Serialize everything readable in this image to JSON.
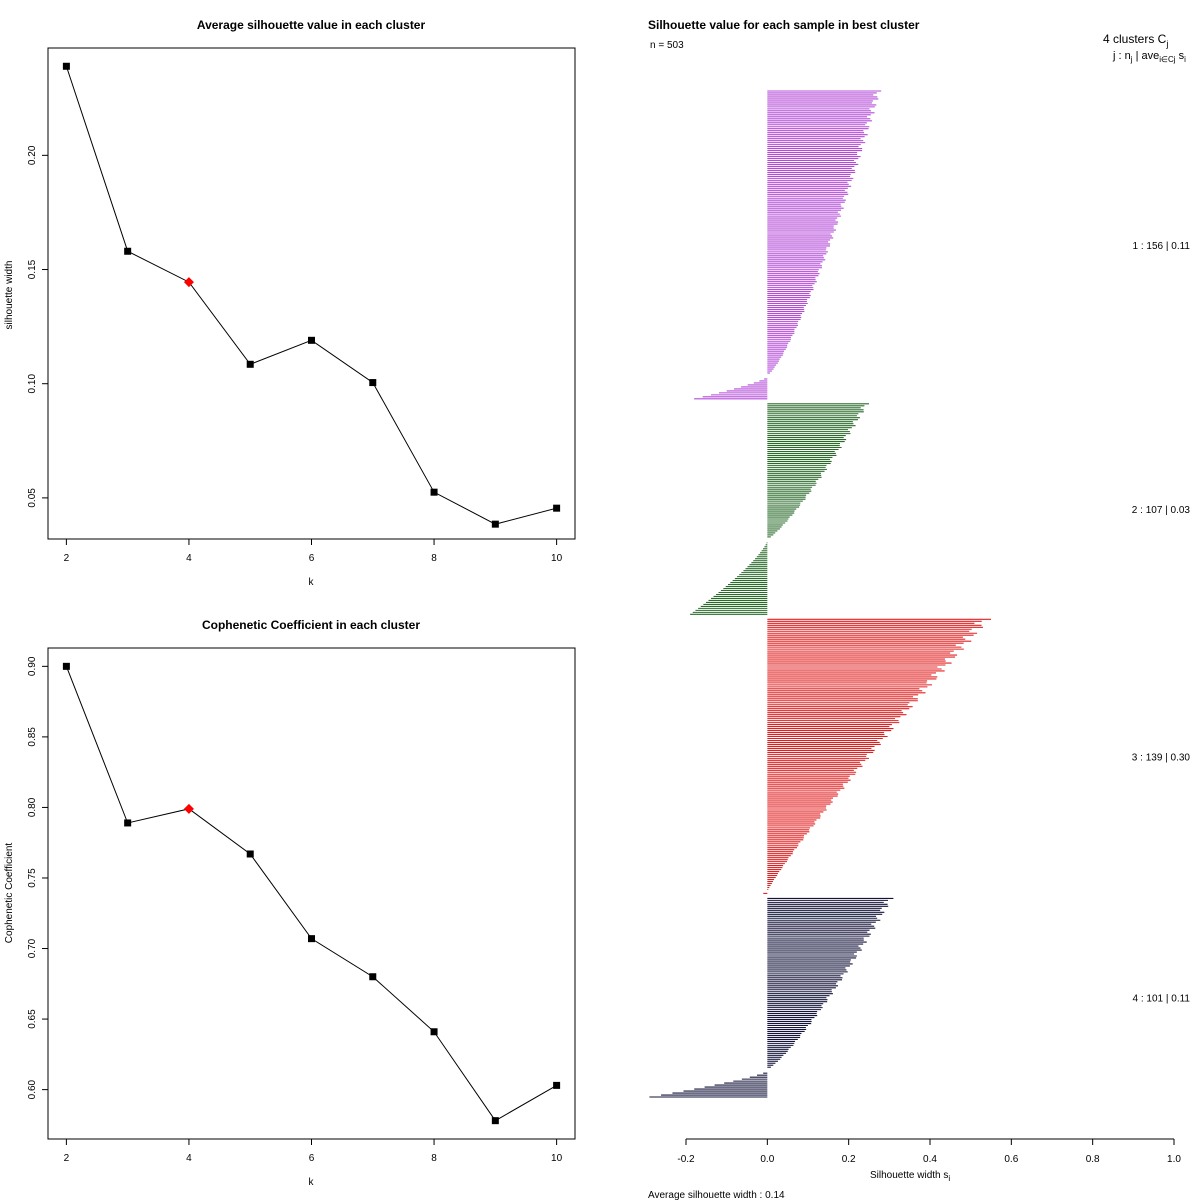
{
  "chart_data": [
    {
      "type": "line",
      "title": "Average silhouette value in each cluster",
      "xlabel": "k",
      "ylabel": "silhouette width",
      "x": [
        2,
        3,
        4,
        5,
        6,
        7,
        8,
        9,
        10
      ],
      "values": [
        0.239,
        0.158,
        0.1445,
        0.1085,
        0.119,
        0.1005,
        0.0525,
        0.0385,
        0.0455
      ],
      "highlight_x": 4,
      "highlight_color": "#ff0000",
      "xlim": [
        1.7,
        10.3
      ],
      "ylim": [
        0.032,
        0.247
      ],
      "xticks": [
        "2",
        "4",
        "6",
        "8",
        "10"
      ],
      "yticks": [
        "0.05",
        "0.10",
        "0.15",
        "0.20"
      ]
    },
    {
      "type": "line",
      "title": "Cophenetic Coefficient in each cluster",
      "xlabel": "k",
      "ylabel": "Cophenetic Coefficient",
      "x": [
        2,
        3,
        4,
        5,
        6,
        7,
        8,
        9,
        10
      ],
      "values": [
        0.9,
        0.789,
        0.799,
        0.767,
        0.707,
        0.68,
        0.641,
        0.578,
        0.603
      ],
      "highlight_x": 4,
      "highlight_color": "#ff0000",
      "xlim": [
        1.7,
        10.3
      ],
      "ylim": [
        0.565,
        0.913
      ],
      "xticks": [
        "2",
        "4",
        "6",
        "8",
        "10"
      ],
      "yticks": [
        "0.60",
        "0.65",
        "0.70",
        "0.75",
        "0.80",
        "0.85",
        "0.90"
      ]
    },
    {
      "type": "bar",
      "orientation": "horizontal",
      "title": "Silhouette value for each sample in best cluster",
      "n_label": "n = 503",
      "header_line1": "4  clusters  C",
      "header_sub1": "j",
      "header_line2": "j :  n",
      "header_sub2": "j",
      "header_line3": " | ave",
      "header_sub3": "i∈Cj",
      "header_line4": " s",
      "header_sub4": "i",
      "xlabel": "Silhouette width s",
      "xlabel_sub": "i",
      "footer": "Average silhouette width :  0.14",
      "xlim": [
        -0.2,
        1.0
      ],
      "xticks": [
        "-0.2",
        "0.0",
        "0.2",
        "0.4",
        "0.6",
        "0.8",
        "1.0"
      ],
      "clusters": [
        {
          "id": 1,
          "n": 156,
          "avg": 0.11,
          "label": "1 :   156  |  0.11",
          "color": "#b34ad8",
          "max": 0.28,
          "min": -0.18,
          "profile_pow": 0.75,
          "neg_count": 12
        },
        {
          "id": 2,
          "n": 107,
          "avg": 0.03,
          "label": "2 :   107  |  0.03",
          "color": "#2a6b2a",
          "max": 0.25,
          "min": -0.19,
          "profile_pow": 0.8,
          "neg_count": 38
        },
        {
          "id": 3,
          "n": 139,
          "avg": 0.3,
          "label": "3 :   139  |  0.30",
          "color": "#e02020",
          "max": 0.55,
          "min": -0.01,
          "profile_pow": 1.1,
          "neg_count": 1
        },
        {
          "id": 4,
          "n": 101,
          "avg": 0.11,
          "label": "4 :   101  |  0.11",
          "color": "#14143c",
          "max": 0.31,
          "min": -0.29,
          "profile_pow": 0.8,
          "neg_count": 14
        }
      ]
    }
  ]
}
